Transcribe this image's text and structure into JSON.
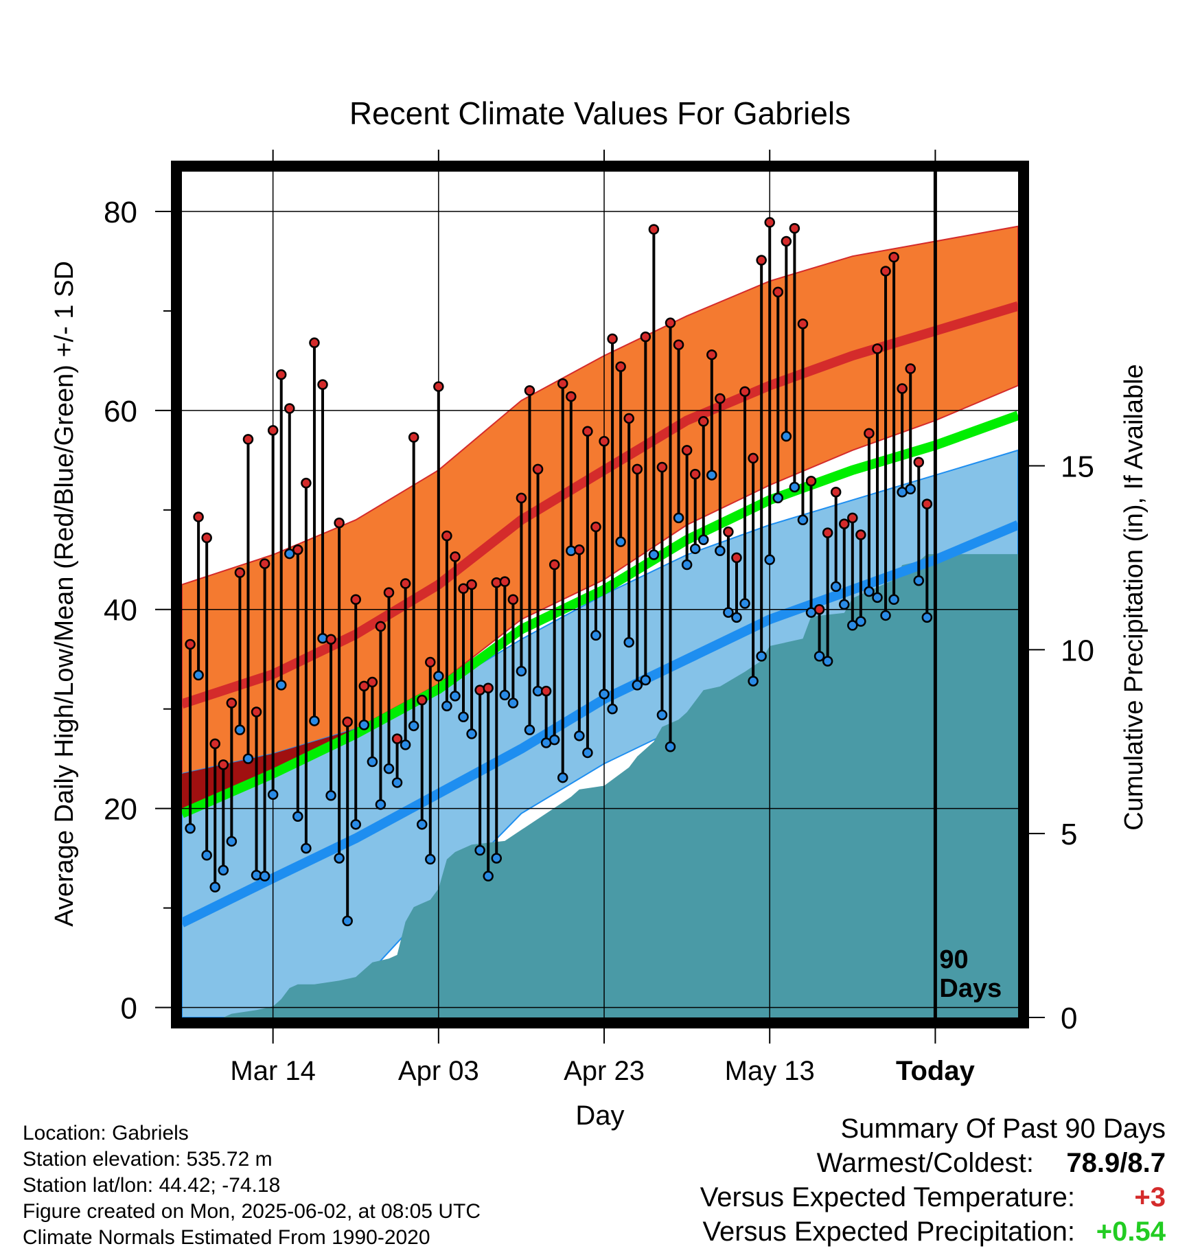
{
  "chart_data": {
    "type": "line",
    "title": "Recent Climate Values For Gabriels",
    "xlabel": "Day",
    "ylabel": "Average Daily High/Low/Mean (Red/Blue/Green) +/- 1 SD",
    "y2label": "Cumulative Precipitation (in), If Available",
    "ylim": [
      -1,
      84
    ],
    "y2lim": [
      0,
      23
    ],
    "yticks": [
      0,
      20,
      40,
      60,
      80
    ],
    "y2ticks": [
      0,
      5,
      10,
      15
    ],
    "xlim": [
      -11,
      90
    ],
    "xticks": [
      {
        "day": 0,
        "label": "Mar 14"
      },
      {
        "day": 20,
        "label": "Apr 03"
      },
      {
        "day": 40,
        "label": "Apr 23"
      },
      {
        "day": 60,
        "label": "May 13"
      },
      {
        "day": 80,
        "label": "Today"
      }
    ],
    "today_marker": {
      "day": 80,
      "label_line1": "90",
      "label_line2": "Days"
    },
    "normals": {
      "day": [
        -11,
        0,
        10,
        20,
        30,
        40,
        50,
        60,
        70,
        80,
        90
      ],
      "high_upper": [
        42.5,
        45.5,
        49,
        54,
        61,
        65.5,
        69.5,
        73,
        75.5,
        77,
        78.5
      ],
      "high_mean": [
        30.5,
        33.5,
        37.5,
        42.5,
        49,
        54,
        59,
        62.5,
        65.5,
        68,
        70.5
      ],
      "high_lower": [
        20,
        23,
        28,
        32.5,
        39,
        43,
        48.5,
        52.5,
        56,
        59,
        62.5
      ],
      "mean_line": [
        19.5,
        23.5,
        27.5,
        32,
        38,
        42,
        47,
        51,
        54,
        56.5,
        59.5
      ],
      "low_upper": [
        23.5,
        25.5,
        28,
        32,
        37,
        41.5,
        45.5,
        48.5,
        51,
        53.5,
        56
      ],
      "low_mean": [
        8.5,
        13,
        17,
        21.5,
        26,
        31,
        35,
        39,
        42,
        45,
        48.5
      ],
      "low_lower": [
        -1,
        -1,
        2,
        11,
        19.5,
        24.5,
        28.5,
        32,
        35,
        38.5,
        41.5
      ]
    },
    "observations": {
      "day": [
        -10,
        -9,
        -8,
        -7,
        -6,
        -5,
        -4,
        -3,
        -2,
        -1,
        0,
        1,
        2,
        3,
        4,
        5,
        6,
        7,
        8,
        9,
        10,
        11,
        12,
        13,
        14,
        15,
        16,
        17,
        18,
        19,
        20,
        21,
        22,
        23,
        24,
        25,
        26,
        27,
        28,
        29,
        30,
        31,
        32,
        33,
        34,
        35,
        36,
        37,
        38,
        39,
        40,
        41,
        42,
        43,
        44,
        45,
        46,
        47,
        48,
        49,
        50,
        51,
        52,
        53,
        54,
        55,
        56,
        57,
        58,
        59,
        60,
        61,
        62,
        63,
        64,
        65,
        66,
        67,
        68,
        69,
        70,
        71,
        72,
        73,
        74,
        75,
        76,
        77,
        78,
        79
      ],
      "high": [
        36.5,
        49.3,
        47.2,
        26.5,
        24.4,
        30.6,
        43.7,
        57.1,
        29.7,
        44.6,
        58,
        63.6,
        60.2,
        46,
        52.7,
        66.8,
        62.6,
        37,
        48.7,
        28.7,
        41,
        32.3,
        32.7,
        38.3,
        41.7,
        27,
        42.6,
        57.3,
        30.9,
        34.7,
        62.4,
        47.4,
        45.3,
        42.1,
        42.5,
        31.9,
        32.1,
        42.7,
        42.8,
        41,
        51.2,
        62,
        54.1,
        31.8,
        44.5,
        62.7,
        61.4,
        46,
        57.9,
        48.3,
        56.9,
        67.2,
        64.4,
        59.2,
        54.1,
        67.4,
        78.2,
        54.3,
        68.8,
        66.6,
        56,
        53.6,
        58.9,
        65.6,
        61.2,
        47.8,
        45.2,
        61.9,
        55.2,
        75.1,
        78.9,
        71.9,
        77,
        78.3,
        68.7,
        52.9,
        40,
        47.7,
        51.8,
        48.6,
        49.2,
        47.5,
        57.7,
        66.2,
        74,
        75.4,
        62.2,
        64.2,
        54.8,
        50.6
      ],
      "low": [
        18,
        33.4,
        15.3,
        12.1,
        13.8,
        16.7,
        27.9,
        25,
        13.3,
        13.2,
        21.4,
        32.4,
        45.6,
        19.2,
        16,
        28.8,
        37.1,
        21.3,
        15,
        8.7,
        18.4,
        28.4,
        24.7,
        20.4,
        24,
        22.6,
        26.4,
        28.3,
        18.4,
        14.9,
        33.3,
        30.3,
        31.3,
        29.2,
        27.5,
        15.8,
        13.2,
        15,
        31.4,
        30.6,
        33.8,
        27.9,
        31.8,
        26.6,
        26.9,
        23.1,
        45.9,
        27.3,
        25.6,
        37.4,
        31.5,
        30,
        46.8,
        36.7,
        32.4,
        32.9,
        45.5,
        29.4,
        26.2,
        49.2,
        44.5,
        46.1,
        47,
        53.5,
        45.9,
        39.7,
        39.2,
        40.6,
        32.8,
        35.3,
        45,
        51.2,
        57.4,
        52.3,
        49,
        39.7,
        35.3,
        34.8,
        42.3,
        40.5,
        38.4,
        38.8,
        41.8,
        41.2,
        39.4,
        41,
        51.8,
        52.1,
        42.9,
        39.2
      ]
    },
    "precipitation": {
      "day": [
        -11,
        -6,
        -5,
        -2,
        0,
        1,
        2,
        3,
        5,
        8,
        10,
        12,
        14,
        15,
        16,
        17,
        18,
        19,
        20,
        21,
        22,
        24,
        28,
        30,
        32,
        34,
        36,
        37,
        40,
        43,
        44,
        46,
        47,
        49,
        50,
        52,
        54,
        57,
        59,
        60,
        64,
        65,
        69,
        70,
        71,
        75,
        76,
        78,
        79,
        90
      ],
      "cumulative": [
        0,
        0,
        0.1,
        0.2,
        0.3,
        0.5,
        0.8,
        0.9,
        0.9,
        1,
        1.1,
        1.5,
        1.6,
        1.7,
        2.6,
        3,
        3.1,
        3.2,
        3.5,
        4.3,
        4.5,
        4.7,
        4.8,
        5.1,
        5.4,
        5.7,
        6,
        6.2,
        6.3,
        6.8,
        7.1,
        7.5,
        7.9,
        8.1,
        8.3,
        8.9,
        9,
        9.4,
        9.7,
        10.1,
        10.3,
        10.9,
        11,
        11.4,
        11.5,
        11.9,
        12.3,
        12.4,
        12.6,
        12.6
      ]
    },
    "grid": true,
    "colors": {
      "high_band": "#f47a30",
      "high_mean": "#d42b2b",
      "overlap": "#a01010",
      "mean_line": "#00ee00",
      "low_band": "#85c2e8",
      "low_mean": "#1e8ef0",
      "precip": "#4a9aa6",
      "high_marker": "#d42b2b",
      "low_marker": "#2a8be6"
    }
  },
  "footer": {
    "location": "Location: Gabriels",
    "elevation": "Station elevation: 535.72 m",
    "latlon": "Station lat/lon: 44.42; -74.18",
    "created": "Figure created on Mon, 2025-06-02, at 08:05 UTC",
    "normals": "Climate Normals Estimated From 1990-2020"
  },
  "summary": {
    "heading": "Summary Of Past 90 Days",
    "warm_cold_label": "Warmest/Coldest:",
    "warm_cold_value": "78.9/8.7",
    "temp_label": "Versus Expected Temperature:",
    "temp_value": "+3",
    "temp_color": "#d42b2b",
    "precip_label": "Versus Expected Precipitation:",
    "precip_value": "+0.54",
    "precip_color": "#22cc22"
  }
}
